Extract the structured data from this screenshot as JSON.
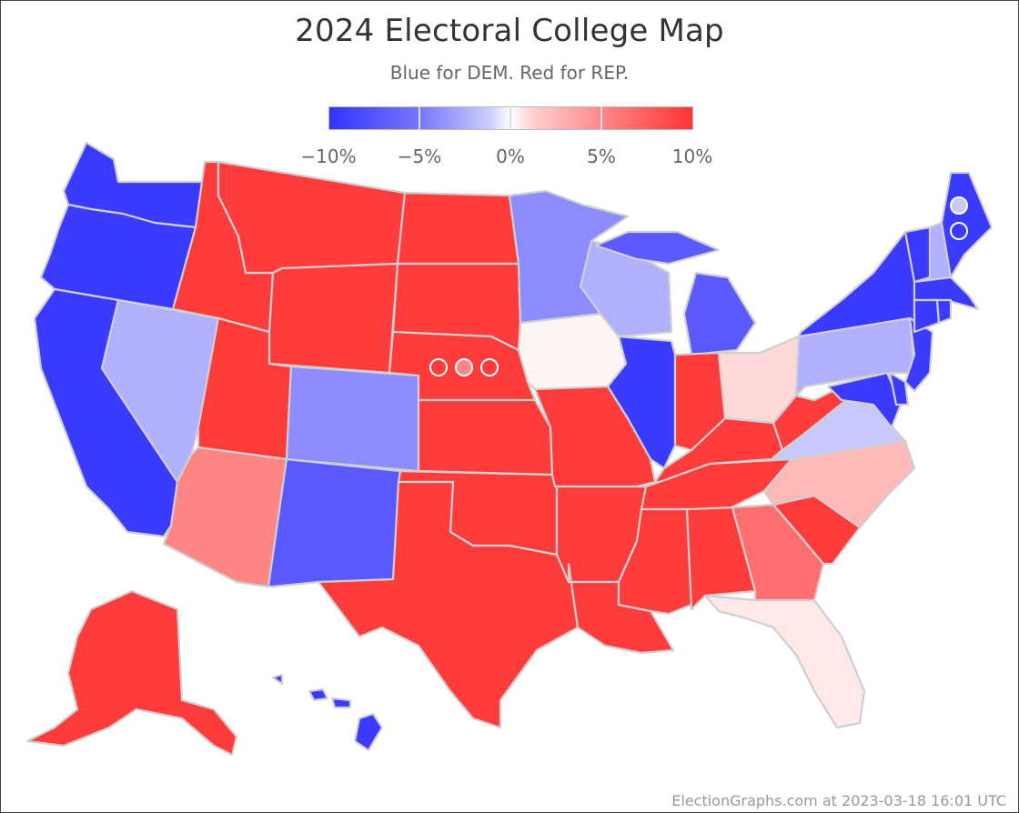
{
  "header": {
    "title": "2024 Electoral College Map",
    "subtitle": "Blue for DEM. Red for REP."
  },
  "legend": {
    "ticks": [
      "−10%",
      "−5%",
      "0%",
      "5%",
      "10%"
    ],
    "scale_colors": [
      "#3333ff",
      "#7777ff",
      "#ccccff",
      "#ffffff",
      "#ffd0d0",
      "#ff8888",
      "#ff3333"
    ]
  },
  "colors": {
    "dem_strong": "#3b3bff",
    "dem_medium": "#5a5aff",
    "dem_lean": "#8c8cff",
    "dem_light": "#b0b0ff",
    "dem_faint": "#c8c8ff",
    "rep_strong": "#ff3c3c",
    "rep_medium": "#ff6f6f",
    "rep_lean": "#ff8585",
    "rep_light": "#ffb8b8",
    "rep_faint": "#ffd8d8",
    "rep_very_faint": "#ffe8e8",
    "rep_tossup": "#fff4f4",
    "border": "#cfcfcf"
  },
  "footer": {
    "credit": "ElectionGraphs.com at 2023-03-18 16:01 UTC"
  }
}
